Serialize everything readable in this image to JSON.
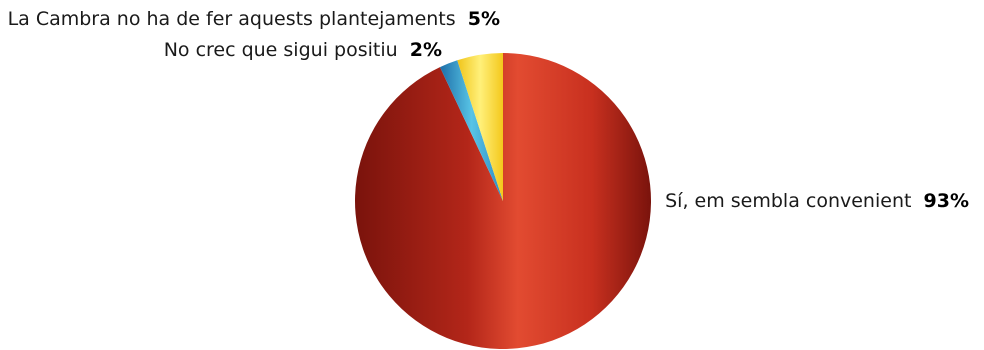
{
  "chart_data": {
    "type": "pie",
    "title": "",
    "slices": [
      {
        "label": "Sí, em sembla convenient",
        "value": 93,
        "value_label": "93%",
        "color": "#D83C2A"
      },
      {
        "label": "No crec que sigui positiu",
        "value": 2,
        "value_label": "2%",
        "color": "#3AA6D4"
      },
      {
        "label": "La Cambra no ha de fer aquests plantejaments",
        "value": 5,
        "value_label": "5%",
        "color": "#F6D62A"
      }
    ],
    "start": "12 o'clock",
    "direction": "clockwise",
    "legend": "none",
    "labels": "outside"
  }
}
